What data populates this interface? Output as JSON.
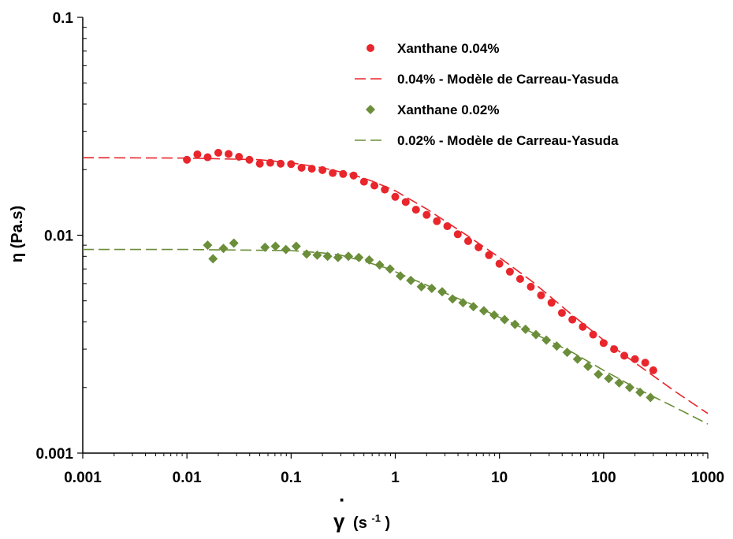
{
  "chart_data": {
    "type": "scatter",
    "xscale": "log",
    "yscale": "log",
    "xlim": [
      0.001,
      1000
    ],
    "ylim": [
      0.001,
      0.1
    ],
    "grid": false,
    "legend_position": "top-right",
    "xlabel": {
      "symbol": "γ",
      "dot": "·",
      "text": "(s",
      "sup": "-1",
      "close": ")"
    },
    "ylabel": "η (Pa.s)",
    "x_ticks": [
      {
        "value": 0.001,
        "label": "0.001"
      },
      {
        "value": 0.01,
        "label": "0.01"
      },
      {
        "value": 0.1,
        "label": "0.1"
      },
      {
        "value": 1,
        "label": "1"
      },
      {
        "value": 10,
        "label": "10"
      },
      {
        "value": 100,
        "label": "100"
      },
      {
        "value": 1000,
        "label": "1000"
      }
    ],
    "y_ticks": [
      {
        "value": 0.001,
        "label": "0.001"
      },
      {
        "value": 0.01,
        "label": "0.01"
      },
      {
        "value": 0.1,
        "label": "0.1"
      }
    ],
    "series": [
      {
        "name": "Xanthane 0.04%",
        "kind": "points",
        "marker": "circle",
        "color": "#e8262c",
        "x": [
          0.01,
          0.0126,
          0.0158,
          0.02,
          0.0251,
          0.0316,
          0.0398,
          0.0501,
          0.0631,
          0.0794,
          0.1,
          0.126,
          0.158,
          0.2,
          0.251,
          0.316,
          0.398,
          0.501,
          0.631,
          0.794,
          1.0,
          1.26,
          1.58,
          2.0,
          2.51,
          3.16,
          3.98,
          5.01,
          6.31,
          7.94,
          10.0,
          12.6,
          15.8,
          20.0,
          25.1,
          31.6,
          39.8,
          50.1,
          63.1,
          79.4,
          100,
          126,
          158,
          200,
          251,
          300
        ],
        "y": [
          0.0222,
          0.0235,
          0.0228,
          0.0239,
          0.0236,
          0.0229,
          0.0222,
          0.0213,
          0.0215,
          0.0213,
          0.0212,
          0.0204,
          0.0202,
          0.0199,
          0.0193,
          0.0191,
          0.0188,
          0.0176,
          0.0169,
          0.0162,
          0.015,
          0.0142,
          0.0131,
          0.0124,
          0.0116,
          0.011,
          0.0101,
          0.0094,
          0.0088,
          0.0081,
          0.0074,
          0.0068,
          0.0063,
          0.0058,
          0.0053,
          0.0049,
          0.0044,
          0.0041,
          0.0038,
          0.0035,
          0.0032,
          0.003,
          0.0028,
          0.0027,
          0.0026,
          0.0024
        ]
      },
      {
        "name": "0.04% - Modèle de Carreau-Yasuda",
        "kind": "line",
        "dash": "dashed",
        "color": "#e8262c",
        "x": [
          0.001,
          0.01,
          0.05,
          0.1,
          0.2,
          0.4,
          0.6,
          1,
          2,
          5,
          10,
          20,
          50,
          100,
          200,
          500,
          1000
        ],
        "y": [
          0.0227,
          0.0226,
          0.0222,
          0.0215,
          0.0204,
          0.0189,
          0.0177,
          0.016,
          0.0132,
          0.0099,
          0.0079,
          0.0062,
          0.0043,
          0.0033,
          0.0026,
          0.0019,
          0.00152
        ]
      },
      {
        "name": "Xanthane 0.02%",
        "kind": "points",
        "marker": "diamond",
        "color": "#6b8e3a",
        "x": [
          0.0158,
          0.0178,
          0.0224,
          0.0282,
          0.0562,
          0.0708,
          0.0891,
          0.112,
          0.141,
          0.178,
          0.224,
          0.282,
          0.355,
          0.447,
          0.562,
          0.708,
          0.891,
          1.12,
          1.41,
          1.78,
          2.24,
          2.82,
          3.55,
          4.47,
          5.62,
          7.08,
          8.91,
          11.2,
          14.1,
          17.8,
          22.4,
          28.2,
          35.5,
          44.7,
          56.2,
          70.8,
          89.1,
          112,
          141,
          178,
          224,
          282
        ],
        "y": [
          0.009,
          0.0078,
          0.0087,
          0.0092,
          0.0088,
          0.0089,
          0.0086,
          0.0089,
          0.0082,
          0.0081,
          0.008,
          0.0079,
          0.008,
          0.0079,
          0.0077,
          0.0073,
          0.007,
          0.0065,
          0.0062,
          0.0058,
          0.0057,
          0.0055,
          0.0051,
          0.0049,
          0.0047,
          0.0045,
          0.0043,
          0.0041,
          0.0039,
          0.0037,
          0.0035,
          0.0033,
          0.0031,
          0.0029,
          0.0027,
          0.0025,
          0.0023,
          0.0022,
          0.0021,
          0.002,
          0.0019,
          0.0018
        ]
      },
      {
        "name": "0.02% - Modèle de Carreau-Yasuda",
        "kind": "line",
        "dash": "dashed",
        "color": "#6b8e3a",
        "x": [
          0.001,
          0.01,
          0.1,
          0.2,
          0.3,
          0.5,
          0.8,
          1,
          2,
          5,
          10,
          20,
          50,
          100,
          200,
          500,
          1000
        ],
        "y": [
          0.0086,
          0.0086,
          0.0085,
          0.0083,
          0.0081,
          0.0076,
          0.0071,
          0.0068,
          0.0059,
          0.0049,
          0.0042,
          0.0036,
          0.0029,
          0.0024,
          0.002,
          0.00161,
          0.00136
        ]
      }
    ]
  }
}
